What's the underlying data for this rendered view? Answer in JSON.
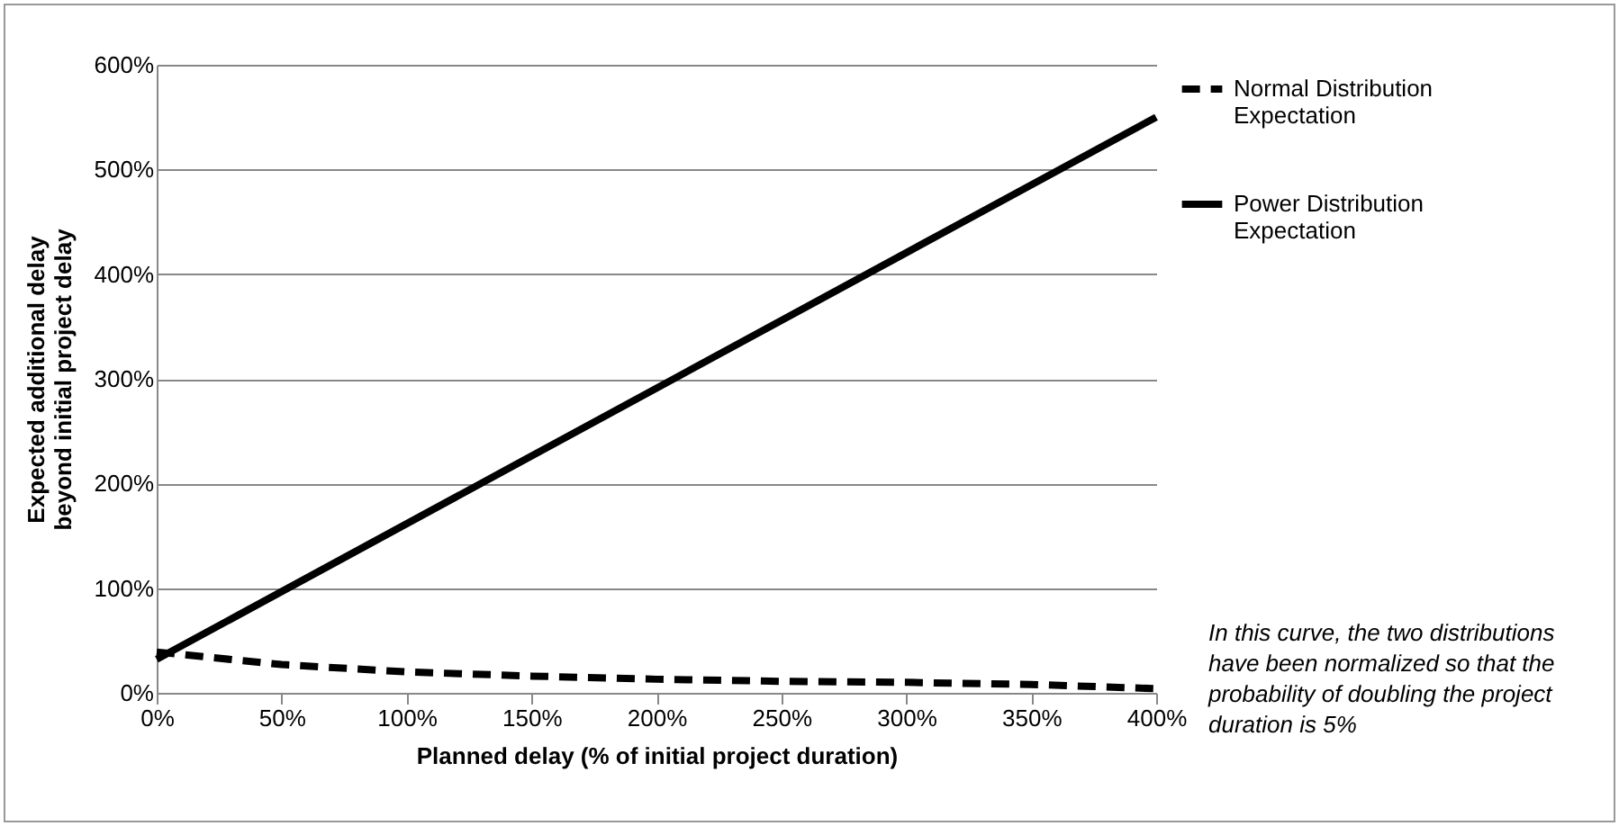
{
  "chart_data": {
    "type": "line",
    "xlabel": "Planned delay (% of initial project duration)",
    "ylabel": "Expected additional delay beyond initial project delay",
    "xlim": [
      0,
      400
    ],
    "ylim": [
      0,
      600
    ],
    "xticks": [
      {
        "value": 0,
        "label": "0%"
      },
      {
        "value": 50,
        "label": "50%"
      },
      {
        "value": 100,
        "label": "100%"
      },
      {
        "value": 150,
        "label": "150%"
      },
      {
        "value": 200,
        "label": "200%"
      },
      {
        "value": 250,
        "label": "250%"
      },
      {
        "value": 300,
        "label": "300%"
      },
      {
        "value": 350,
        "label": "350%"
      },
      {
        "value": 400,
        "label": "400%"
      }
    ],
    "yticks": [
      {
        "value": 0,
        "label": "0%"
      },
      {
        "value": 100,
        "label": "100%"
      },
      {
        "value": 200,
        "label": "200%"
      },
      {
        "value": 300,
        "label": "300%"
      },
      {
        "value": 400,
        "label": "400%"
      },
      {
        "value": 500,
        "label": "500%"
      },
      {
        "value": 600,
        "label": "600%"
      }
    ],
    "grid": "y",
    "legend": "right",
    "marker": "none",
    "series": [
      {
        "name": "Normal Distribution Expectation",
        "color": "#000000",
        "line_style": "dashed",
        "x": [
          0,
          50,
          100,
          150,
          200,
          250,
          300,
          350,
          400
        ],
        "values": [
          39,
          27,
          20,
          16,
          13,
          11,
          10,
          8,
          4
        ]
      },
      {
        "name": "Power Distribution Expectation",
        "color": "#000000",
        "line_style": "solid",
        "x": [
          0,
          400
        ],
        "values": [
          32,
          550
        ]
      }
    ],
    "annotations": [
      "In this curve, the two distributions have been normalized so that the probability of doubling the project duration is 5%"
    ]
  }
}
